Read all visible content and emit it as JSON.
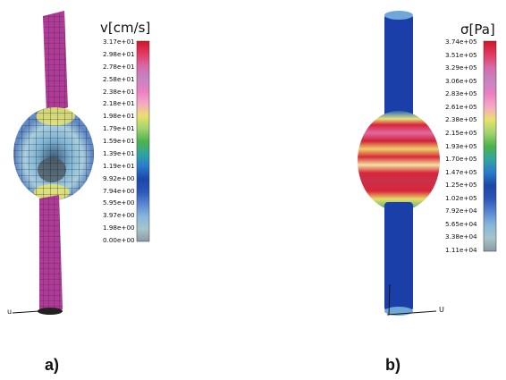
{
  "panels": [
    {
      "label": "a)",
      "legend_title": "v[cm/s]",
      "ticks": [
        "3.17e+01",
        "2.98e+01",
        "2.78e+01",
        "2.58e+01",
        "2.38e+01",
        "2.18e+01",
        "1.98e+01",
        "1.79e+01",
        "1.59e+01",
        "1.39e+01",
        "1.19e+01",
        "9.92e+00",
        "7.94e+00",
        "5.95e+00",
        "3.97e+00",
        "1.98e+00",
        "0.00e+00"
      ],
      "axis_label": "u"
    },
    {
      "label": "b)",
      "legend_title": "σ[Pa]",
      "ticks": [
        "3.74e+05",
        "3.51e+05",
        "3.29e+05",
        "3.06e+05",
        "2.83e+05",
        "2.61e+05",
        "2.38e+05",
        "2.15e+05",
        "1.93e+05",
        "1.70e+05",
        "1.47e+05",
        "1.25e+05",
        "1.02e+05",
        "7.92e+04",
        "5.65e+04",
        "3.38e+04",
        "1.11e+04"
      ],
      "axis_label": "U"
    }
  ],
  "colors": {
    "colormap_top_to_bottom": [
      "#d21428",
      "#e23a62",
      "#d86aa8",
      "#c584c2",
      "#ea7fc2",
      "#f6a9c4",
      "#e9e26a",
      "#9fd36e",
      "#4db34a",
      "#2fa5a0",
      "#2a7bd0",
      "#1a47a8",
      "#2a56b8",
      "#5a86d0",
      "#86b6dc",
      "#a7c4c8",
      "#8a9aa6"
    ],
    "vessel_blue": "#1b3fa8",
    "mesh_magenta": "#b03a98"
  }
}
